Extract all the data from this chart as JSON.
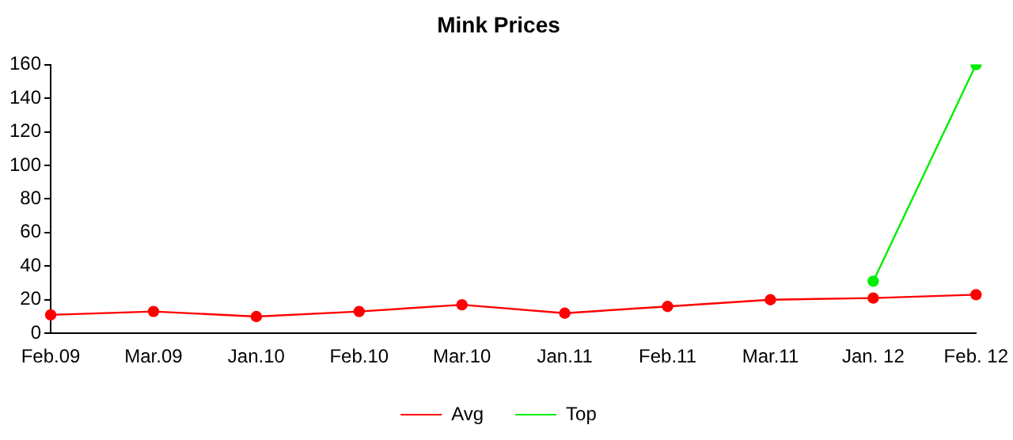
{
  "chart_data": {
    "type": "line",
    "title": "Mink Prices",
    "categories": [
      "Feb.09",
      "Mar.09",
      "Jan.10",
      "Feb.10",
      "Mar.10",
      "Jan.11",
      "Feb.11",
      "Mar.11",
      "Jan. 12",
      "Feb. 12"
    ],
    "series": [
      {
        "name": "Avg",
        "color": "#ff0000",
        "values": [
          11,
          13,
          10,
          13,
          17,
          12,
          16,
          20,
          21,
          23
        ]
      },
      {
        "name": "Top",
        "color": "#00ee00",
        "values": [
          null,
          null,
          null,
          null,
          null,
          null,
          null,
          null,
          31,
          160
        ]
      }
    ],
    "ylim": [
      0,
      160
    ],
    "yticks": [
      0,
      20,
      40,
      60,
      80,
      100,
      120,
      140,
      160
    ],
    "grid": false,
    "legend": "bottom",
    "marker": "circle",
    "line_style": "solid"
  }
}
